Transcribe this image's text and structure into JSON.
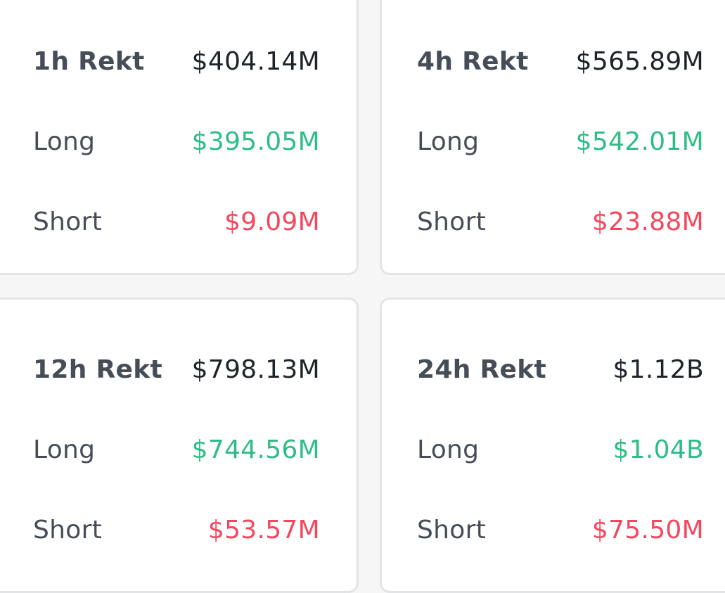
{
  "cards": [
    {
      "id": "1h",
      "title": "1h Rekt",
      "total": "$404.14M",
      "long_label": "Long",
      "long_value": "$395.05M",
      "short_label": "Short",
      "short_value": "$9.09M"
    },
    {
      "id": "4h",
      "title": "4h Rekt",
      "total": "$565.89M",
      "long_label": "Long",
      "long_value": "$542.01M",
      "short_label": "Short",
      "short_value": "$23.88M"
    },
    {
      "id": "12h",
      "title": "12h Rekt",
      "total": "$798.13M",
      "long_label": "Long",
      "long_value": "$744.56M",
      "short_label": "Short",
      "short_value": "$53.57M"
    },
    {
      "id": "24h",
      "title": "24h Rekt",
      "total": "$1.12B",
      "long_label": "Long",
      "long_value": "$1.04B",
      "short_label": "Short",
      "short_value": "$75.50M"
    }
  ],
  "colors": {
    "long": "#2ebd85",
    "short": "#f6465d",
    "label": "#474d57",
    "value": "#1e2329"
  }
}
